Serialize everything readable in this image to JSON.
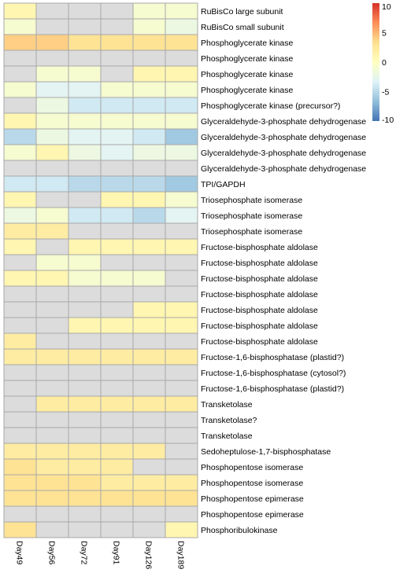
{
  "chart_data": {
    "type": "heatmap",
    "title": "",
    "xlabel": "",
    "ylabel": "",
    "columns": [
      "Day49",
      "Day56",
      "Day72",
      "Day91",
      "Day126",
      "Day189"
    ],
    "rows": [
      "RuBisCo large subunit",
      "RuBisCo small subunit",
      "Phosphoglycerate kinase",
      "Phosphoglycerate kinase",
      "Phosphoglycerate kinase",
      "Phosphoglycerate kinase",
      "Phosphoglycerate kinase (precursor?)",
      "Glyceraldehyde-3-phosphate dehydrogenase",
      "Glyceraldehyde-3-phosphate dehydrogenase",
      "Glyceraldehyde-3-phosphate dehydrogenase",
      "Glyceraldehyde-3-phosphate dehydrogenase",
      "TPI/GAPDH",
      "Triosephosphate isomerase",
      "Triosephosphate isomerase",
      "Triosephosphate isomerase",
      "Fructose-bisphosphate aldolase",
      "Fructose-bisphosphate aldolase",
      "Fructose-bisphosphate aldolase",
      "Fructose-bisphosphate aldolase",
      "Fructose-bisphosphate aldolase",
      "Fructose-bisphosphate aldolase",
      "Fructose-bisphosphate aldolase",
      "Fructose-1,6-bisphosphatase (plastid?)",
      "Fructose-1,6-bisphosphatase (cytosol?)",
      "Fructose-1,6-bisphosphatase (plastid?)",
      "Transketolase",
      "Transketolase?",
      "Transketolase",
      "Sedoheptulose-1,7-bisphosphatase",
      "Phosphopentose isomerase",
      "Phosphopentose isomerase",
      "Phosphopentose epimerase",
      "Phosphopentose epimerase",
      "Phosphoribulokinase"
    ],
    "values": [
      [
        1,
        null,
        null,
        null,
        -1,
        -1
      ],
      [
        -1,
        null,
        null,
        null,
        -1,
        -2
      ],
      [
        4,
        4,
        3,
        3,
        3,
        3
      ],
      [
        null,
        null,
        null,
        null,
        null,
        null
      ],
      [
        null,
        -1,
        -1,
        null,
        1,
        1
      ],
      [
        -1,
        -3,
        -3,
        -1,
        -1,
        -1
      ],
      [
        null,
        -2,
        -4,
        -4,
        -4,
        -4
      ],
      [
        1,
        -1,
        -1,
        -1,
        -1,
        -1
      ],
      [
        -5,
        -2,
        -3,
        -3,
        -4,
        -6
      ],
      [
        -1,
        1,
        -2,
        -3,
        -2,
        -2
      ],
      [
        null,
        null,
        null,
        null,
        null,
        null
      ],
      [
        -4,
        -4,
        -5,
        -5,
        -5,
        -6
      ],
      [
        1,
        null,
        null,
        1,
        1,
        -1
      ],
      [
        -2,
        -1,
        -4,
        -4,
        -5,
        -3
      ],
      [
        2,
        2,
        null,
        null,
        null,
        null
      ],
      [
        1,
        null,
        1,
        1,
        1,
        1
      ],
      [
        null,
        -1,
        -1,
        null,
        null,
        null
      ],
      [
        1,
        1,
        -1,
        -1,
        -1,
        null
      ],
      [
        null,
        null,
        null,
        null,
        null,
        null
      ],
      [
        null,
        null,
        null,
        null,
        1,
        1
      ],
      [
        null,
        null,
        1,
        1,
        1,
        1
      ],
      [
        2,
        null,
        null,
        null,
        null,
        null
      ],
      [
        2,
        2,
        2,
        2,
        2,
        2
      ],
      [
        null,
        null,
        null,
        null,
        null,
        null
      ],
      [
        null,
        null,
        null,
        null,
        null,
        null
      ],
      [
        null,
        2,
        2,
        2,
        2,
        2
      ],
      [
        null,
        null,
        null,
        null,
        null,
        null
      ],
      [
        null,
        null,
        null,
        null,
        null,
        null
      ],
      [
        2,
        2,
        2,
        2,
        2,
        null
      ],
      [
        3,
        2,
        2,
        2,
        null,
        null
      ],
      [
        3,
        3,
        3,
        2,
        2,
        2
      ],
      [
        3,
        3,
        3,
        3,
        3,
        3
      ],
      [
        null,
        null,
        null,
        null,
        null,
        null
      ],
      [
        3,
        null,
        null,
        null,
        null,
        1
      ]
    ],
    "missing_color": "#dcdcdc",
    "grid": true,
    "legend": {
      "position": "top-right",
      "min": -10,
      "max": 10,
      "ticks": [
        10,
        5,
        0,
        -5,
        -10
      ],
      "tick_labels": [
        "10",
        "5",
        "0",
        "-5",
        "-10"
      ],
      "colors": [
        "#4575b4",
        "#91bfdb",
        "#e0f3f8",
        "#ffffbf",
        "#fee090",
        "#fc8d59",
        "#d73027"
      ]
    }
  }
}
